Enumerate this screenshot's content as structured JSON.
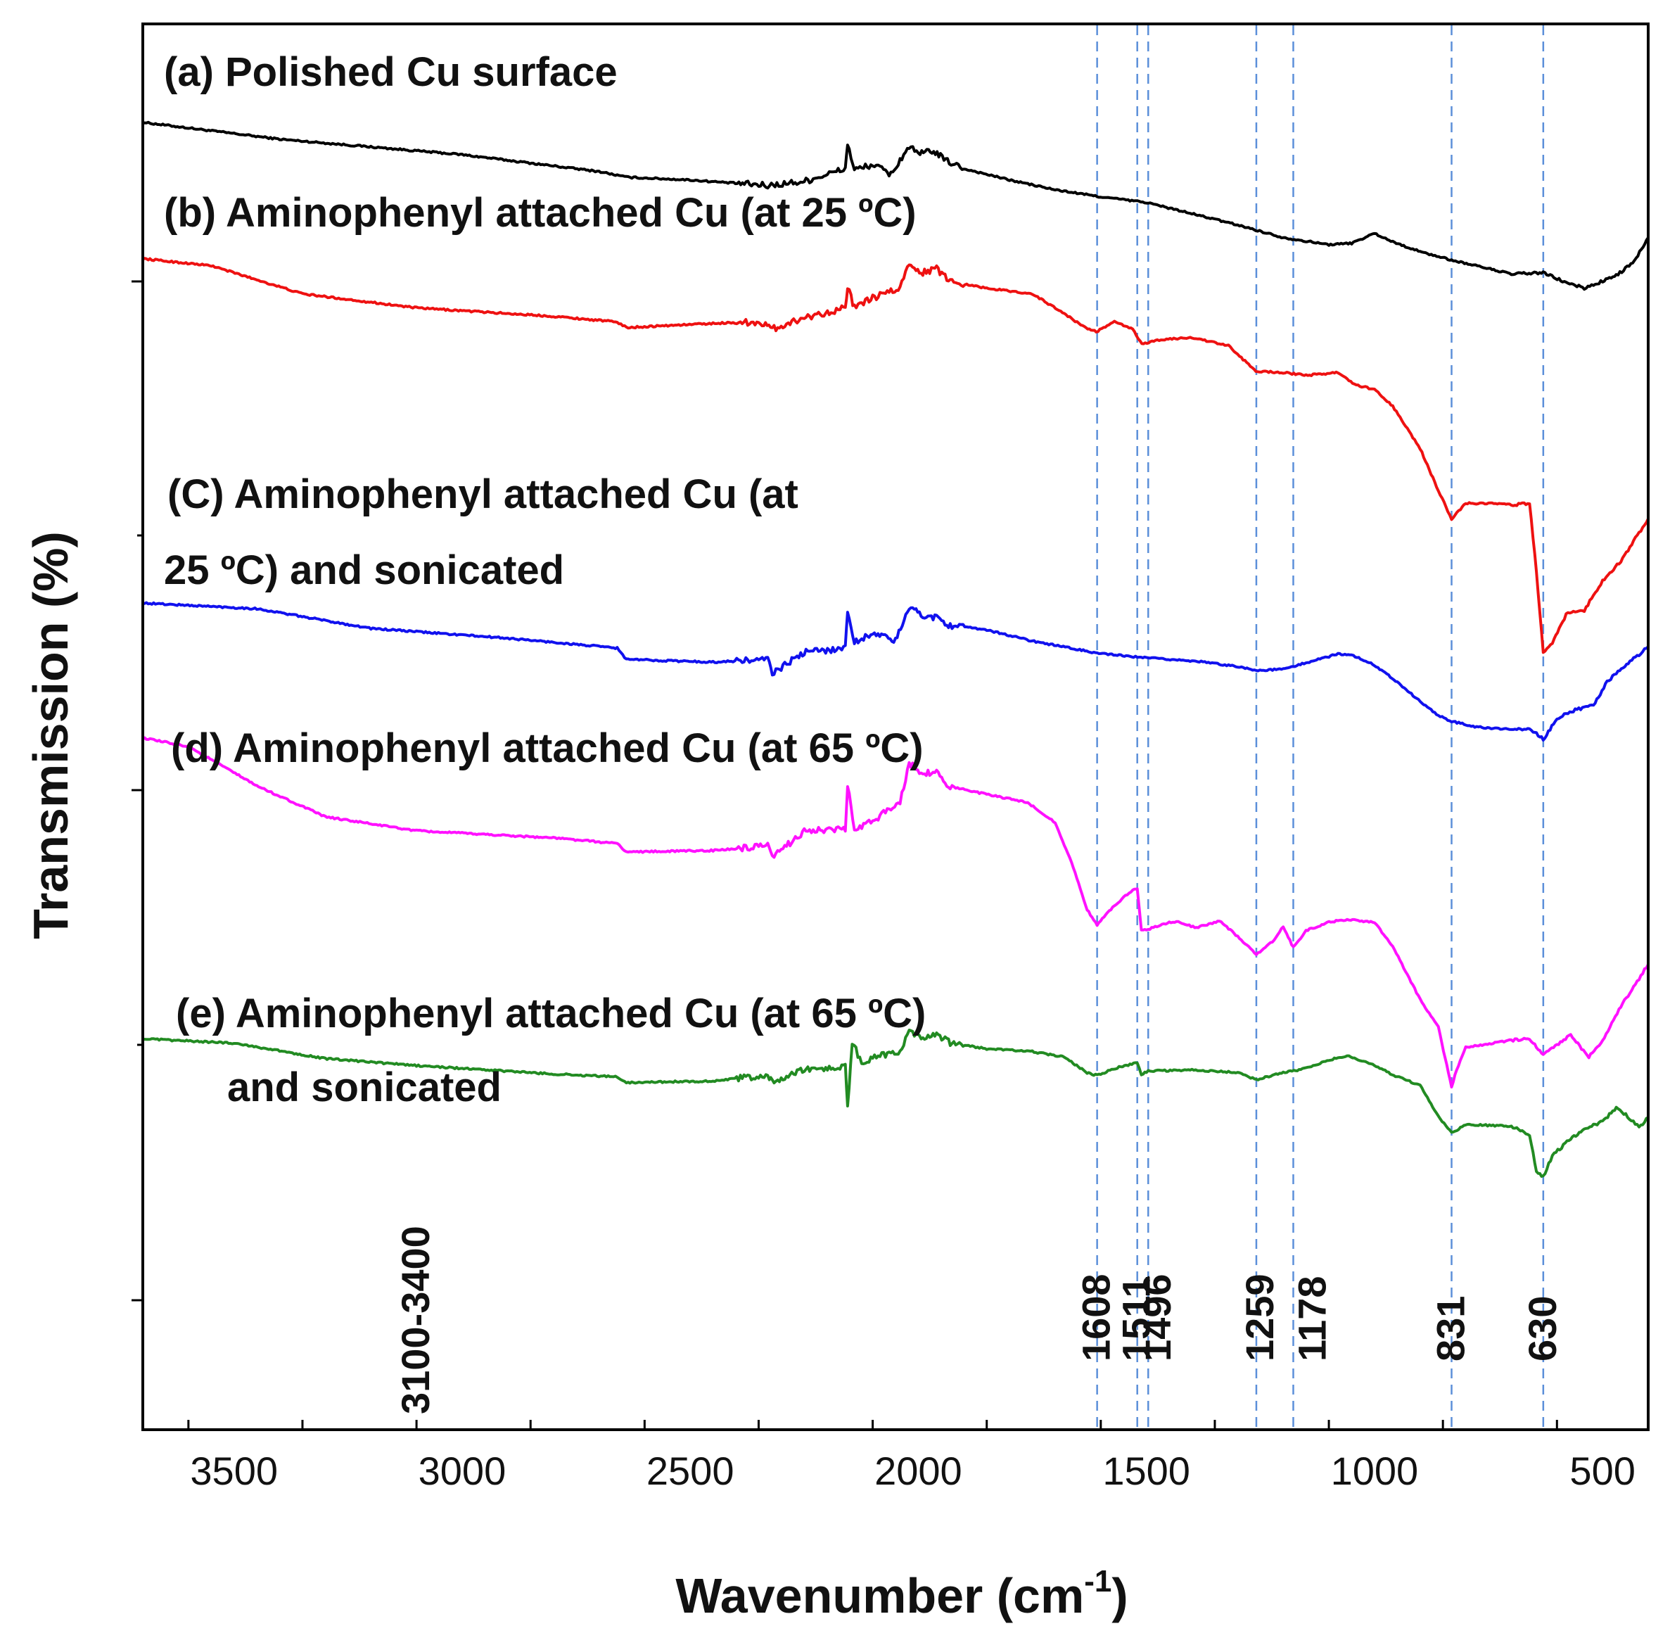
{
  "chart_data": {
    "type": "line",
    "xlabel": "Wavenumber (cm",
    "xlabel_sup": "-1",
    "xlabel_close": ")",
    "ylabel": "Transmission (%)",
    "xlim": [
      3700,
      400
    ],
    "x_reversed": true,
    "x_ticks": [
      3500,
      3000,
      2500,
      2000,
      1500,
      1000,
      500
    ],
    "y_axis_values_shown": false,
    "y_units": "arbitrary offset units, 0 = bottom of plot, 100 = top of plot",
    "ylim": [
      0,
      100
    ],
    "reference_lines": {
      "style": "dashed",
      "color": "#5b8fd9",
      "positions": [
        1608,
        1520,
        1496,
        1259,
        1178,
        831,
        630
      ]
    },
    "peak_labels": [
      {
        "text": "3100-3400",
        "x": 3100
      },
      {
        "text": "1608",
        "x": 1608
      },
      {
        "text": "1511",
        "x": 1520
      },
      {
        "text": "1496",
        "x": 1475
      },
      {
        "text": "1259",
        "x": 1250
      },
      {
        "text": "1178",
        "x": 1135
      },
      {
        "text": "831",
        "x": 831
      },
      {
        "text": "630",
        "x": 630
      }
    ],
    "series": [
      {
        "name": "(a) Polished Cu surface",
        "label_lines": [
          "(a) Polished Cu surface"
        ],
        "color": "#000000",
        "points": [
          [
            3700,
            93
          ],
          [
            3400,
            91.8
          ],
          [
            3000,
            90.7
          ],
          [
            2700,
            89.5
          ],
          [
            2640,
            89.1
          ],
          [
            2500,
            88.9
          ],
          [
            2330,
            88.5
          ],
          [
            2250,
            88.8
          ],
          [
            2160,
            89.7
          ],
          [
            2155,
            91.5
          ],
          [
            2140,
            89.6
          ],
          [
            2100,
            90
          ],
          [
            2060,
            89.3
          ],
          [
            2020,
            91.3
          ],
          [
            2000,
            90.7
          ],
          [
            1970,
            91.0
          ],
          [
            1940,
            90.3
          ],
          [
            1900,
            89.7
          ],
          [
            1800,
            88.9
          ],
          [
            1700,
            88.2
          ],
          [
            1600,
            87.7
          ],
          [
            1500,
            87.3
          ],
          [
            1400,
            86.5
          ],
          [
            1300,
            85.7
          ],
          [
            1200,
            84.8
          ],
          [
            1100,
            84.3
          ],
          [
            1050,
            84.4
          ],
          [
            1000,
            85.1
          ],
          [
            960,
            84.5
          ],
          [
            900,
            83.8
          ],
          [
            831,
            83.2
          ],
          [
            750,
            82.6
          ],
          [
            700,
            82.2
          ],
          [
            630,
            82.3
          ],
          [
            580,
            81.6
          ],
          [
            540,
            81.2
          ],
          [
            500,
            81.7
          ],
          [
            470,
            82.1
          ],
          [
            430,
            83.1
          ],
          [
            400,
            84.8
          ]
        ]
      },
      {
        "name": "(b) Aminophenyl attached Cu (at 25 ºC)",
        "label_lines": [
          "(b) Aminophenyl attached Cu (at 25 ºC)"
        ],
        "color": "#ee1111",
        "points": [
          [
            3700,
            83.3
          ],
          [
            3550,
            82.8
          ],
          [
            3350,
            80.8
          ],
          [
            3100,
            79.8
          ],
          [
            2800,
            79.2
          ],
          [
            2660,
            78.8
          ],
          [
            2640,
            78.4
          ],
          [
            2450,
            78.7
          ],
          [
            2350,
            78.8
          ],
          [
            2320,
            78.3
          ],
          [
            2250,
            79.1
          ],
          [
            2160,
            79.8
          ],
          [
            2155,
            81.3
          ],
          [
            2140,
            79.8
          ],
          [
            2100,
            80.5
          ],
          [
            2040,
            81.2
          ],
          [
            2020,
            83
          ],
          [
            1990,
            82.3
          ],
          [
            1960,
            82.6
          ],
          [
            1930,
            81.7
          ],
          [
            1850,
            81.2
          ],
          [
            1750,
            80.8
          ],
          [
            1680,
            79.4
          ],
          [
            1640,
            78.5
          ],
          [
            1610,
            78.1
          ],
          [
            1570,
            78.8
          ],
          [
            1530,
            78.3
          ],
          [
            1510,
            77.2
          ],
          [
            1480,
            77.5
          ],
          [
            1400,
            77.7
          ],
          [
            1320,
            77.1
          ],
          [
            1260,
            75.3
          ],
          [
            1200,
            75.2
          ],
          [
            1150,
            75.0
          ],
          [
            1080,
            75.2
          ],
          [
            1040,
            74.3
          ],
          [
            1000,
            74.0
          ],
          [
            960,
            72.8
          ],
          [
            900,
            69.8
          ],
          [
            860,
            66.8
          ],
          [
            831,
            64.8
          ],
          [
            800,
            65.9
          ],
          [
            750,
            65.9
          ],
          [
            700,
            65.8
          ],
          [
            660,
            65.9
          ],
          [
            645,
            61
          ],
          [
            630,
            55.3
          ],
          [
            610,
            55.9
          ],
          [
            580,
            58
          ],
          [
            540,
            58.3
          ],
          [
            500,
            60.4
          ],
          [
            460,
            61.8
          ],
          [
            400,
            64.8
          ]
        ]
      },
      {
        "name": "(C) Aminophenyl attached Cu (at 25 ºC) and sonicated",
        "label_lines": [
          "(C) Aminophenyl attached Cu (at",
          "25 ºC) and sonicated"
        ],
        "color": "#1111ee",
        "points": [
          [
            3700,
            58.8
          ],
          [
            3450,
            58.4
          ],
          [
            3200,
            57
          ],
          [
            2900,
            56.3
          ],
          [
            2660,
            55.6
          ],
          [
            2640,
            54.8
          ],
          [
            2450,
            54.6
          ],
          [
            2330,
            54.8
          ],
          [
            2320,
            53.8
          ],
          [
            2250,
            55.3
          ],
          [
            2160,
            55.6
          ],
          [
            2155,
            58.3
          ],
          [
            2140,
            56
          ],
          [
            2100,
            56.7
          ],
          [
            2050,
            56.1
          ],
          [
            2020,
            58.5
          ],
          [
            1990,
            57.9
          ],
          [
            1960,
            57.8
          ],
          [
            1930,
            57.2
          ],
          [
            1850,
            56.9
          ],
          [
            1750,
            56.1
          ],
          [
            1650,
            55.5
          ],
          [
            1600,
            55.2
          ],
          [
            1500,
            54.9
          ],
          [
            1400,
            54.7
          ],
          [
            1300,
            54.3
          ],
          [
            1259,
            54
          ],
          [
            1200,
            54.1
          ],
          [
            1178,
            54.3
          ],
          [
            1100,
            55
          ],
          [
            1080,
            55.2
          ],
          [
            1050,
            55.1
          ],
          [
            1000,
            54.4
          ],
          [
            950,
            53.2
          ],
          [
            900,
            51.8
          ],
          [
            860,
            50.8
          ],
          [
            831,
            50.4
          ],
          [
            780,
            50.0
          ],
          [
            700,
            49.8
          ],
          [
            660,
            49.9
          ],
          [
            630,
            49.1
          ],
          [
            600,
            50.6
          ],
          [
            560,
            51.2
          ],
          [
            520,
            51.5
          ],
          [
            490,
            53.2
          ],
          [
            470,
            53.8
          ],
          [
            440,
            54.6
          ],
          [
            400,
            55.7
          ]
        ]
      },
      {
        "name": "(d) Aminophenyl attached Cu (at 65 ºC)",
        "label_lines": [
          "(d) Aminophenyl attached Cu (at 65 ºC)"
        ],
        "color": "#ff11ff",
        "points": [
          [
            3700,
            49.2
          ],
          [
            3600,
            48.6
          ],
          [
            3450,
            45.8
          ],
          [
            3300,
            43.6
          ],
          [
            3100,
            42.6
          ],
          [
            2800,
            42.1
          ],
          [
            2660,
            41.7
          ],
          [
            2640,
            41.1
          ],
          [
            2450,
            41.2
          ],
          [
            2330,
            41.5
          ],
          [
            2320,
            40.7
          ],
          [
            2250,
            42.6
          ],
          [
            2160,
            42.7
          ],
          [
            2155,
            45.9
          ],
          [
            2140,
            42.6
          ],
          [
            2100,
            43.3
          ],
          [
            2040,
            44.7
          ],
          [
            2020,
            47.4
          ],
          [
            1990,
            46.7
          ],
          [
            1960,
            46.8
          ],
          [
            1930,
            45.7
          ],
          [
            1850,
            45.2
          ],
          [
            1760,
            44.6
          ],
          [
            1700,
            43.2
          ],
          [
            1660,
            40
          ],
          [
            1630,
            37
          ],
          [
            1608,
            35.9
          ],
          [
            1570,
            37.3
          ],
          [
            1530,
            38.4
          ],
          [
            1520,
            38.5
          ],
          [
            1511,
            35.6
          ],
          [
            1496,
            35.6
          ],
          [
            1450,
            36.1
          ],
          [
            1430,
            36.1
          ],
          [
            1390,
            35.7
          ],
          [
            1340,
            36.2
          ],
          [
            1300,
            35.1
          ],
          [
            1259,
            33.8
          ],
          [
            1220,
            34.8
          ],
          [
            1200,
            35.8
          ],
          [
            1178,
            34.3
          ],
          [
            1150,
            35.5
          ],
          [
            1100,
            36.1
          ],
          [
            1060,
            36.3
          ],
          [
            1000,
            36.1
          ],
          [
            960,
            34.4
          ],
          [
            900,
            30.6
          ],
          [
            860,
            28.7
          ],
          [
            845,
            26.4
          ],
          [
            831,
            24.4
          ],
          [
            820,
            25.6
          ],
          [
            800,
            27.2
          ],
          [
            700,
            27.7
          ],
          [
            660,
            27.8
          ],
          [
            630,
            26.7
          ],
          [
            600,
            27.4
          ],
          [
            570,
            28.1
          ],
          [
            530,
            26.5
          ],
          [
            500,
            27.7
          ],
          [
            460,
            30.1
          ],
          [
            400,
            33.1
          ]
        ]
      },
      {
        "name": "(e) Aminophenyl attached Cu (at 65 ºC) and sonicated",
        "label_lines": [
          "(e) Aminophenyl attached Cu (at 65 ºC)",
          "and sonicated"
        ],
        "color": "#228b22",
        "points": [
          [
            3700,
            27.8
          ],
          [
            3500,
            27.5
          ],
          [
            3300,
            26.4
          ],
          [
            3100,
            25.9
          ],
          [
            2800,
            25.3
          ],
          [
            2660,
            25.1
          ],
          [
            2640,
            24.7
          ],
          [
            2450,
            24.8
          ],
          [
            2330,
            25.2
          ],
          [
            2320,
            24.7
          ],
          [
            2250,
            25.6
          ],
          [
            2160,
            25.8
          ],
          [
            2155,
            22.9
          ],
          [
            2145,
            27.6
          ],
          [
            2120,
            25.8
          ],
          [
            2100,
            26.5
          ],
          [
            2040,
            26.9
          ],
          [
            2020,
            28.3
          ],
          [
            1990,
            27.7
          ],
          [
            1960,
            28.1
          ],
          [
            1930,
            27.5
          ],
          [
            1850,
            27.1
          ],
          [
            1750,
            26.9
          ],
          [
            1680,
            26.5
          ],
          [
            1630,
            25.4
          ],
          [
            1608,
            25.2
          ],
          [
            1560,
            25.8
          ],
          [
            1520,
            26.1
          ],
          [
            1511,
            25.3
          ],
          [
            1496,
            25.5
          ],
          [
            1400,
            25.6
          ],
          [
            1300,
            25.4
          ],
          [
            1259,
            24.9
          ],
          [
            1200,
            25.4
          ],
          [
            1150,
            25.7
          ],
          [
            1100,
            26.3
          ],
          [
            1060,
            26.6
          ],
          [
            1000,
            25.9
          ],
          [
            950,
            25.1
          ],
          [
            900,
            24.5
          ],
          [
            860,
            22.3
          ],
          [
            831,
            21.1
          ],
          [
            800,
            21.7
          ],
          [
            700,
            21.6
          ],
          [
            660,
            20.9
          ],
          [
            645,
            18.4
          ],
          [
            630,
            18.0
          ],
          [
            610,
            19.5
          ],
          [
            570,
            20.7
          ],
          [
            540,
            21.4
          ],
          [
            500,
            21.9
          ],
          [
            470,
            22.9
          ],
          [
            445,
            22.3
          ],
          [
            420,
            21.5
          ],
          [
            400,
            22.2
          ]
        ]
      }
    ]
  }
}
